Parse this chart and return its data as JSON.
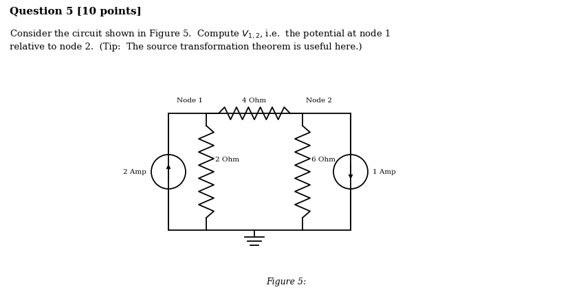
{
  "title_text": "Question 5 [10 points]",
  "body_text_line1": "Consider the circuit shown in Figure 5.  Compute $V_{1,2}$, i.e.  the potential at node 1",
  "body_text_line2": "relative to node 2.  (Tip:  The source transformation theorem is useful here.)",
  "figure_caption": "Figure 5:",
  "node1_label": "Node 1",
  "node2_label": "Node 2",
  "r1_label": "4 Ohm",
  "r2_label": "2 Ohm",
  "r3_label": "6 Ohm",
  "cs1_label": "2 Amp",
  "cs2_label": "1 Amp",
  "bg_color": "#ffffff",
  "line_color": "#000000",
  "font_size_title": 11,
  "font_size_body": 9.5,
  "font_size_caption": 9,
  "font_size_label": 7.5,
  "lw": 1.3
}
